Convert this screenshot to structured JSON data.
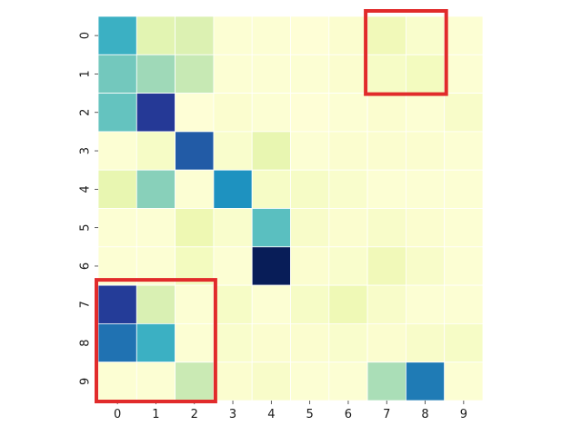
{
  "chart_data": {
    "type": "heatmap",
    "title": "",
    "xlabel": "",
    "ylabel": "",
    "colormap": "YlGnBu",
    "colorbar": false,
    "cell_border_color": "#ffffff",
    "x_tick_labels": [
      "0",
      "1",
      "2",
      "3",
      "4",
      "5",
      "6",
      "7",
      "8",
      "9"
    ],
    "y_tick_labels": [
      "0",
      "1",
      "2",
      "3",
      "4",
      "5",
      "6",
      "7",
      "8",
      "9"
    ],
    "vmin": 0,
    "vmax": 1,
    "values": [
      [
        0.52,
        0.16,
        0.18,
        0.02,
        0.02,
        0.01,
        0.03,
        0.1,
        0.04,
        0.02
      ],
      [
        0.4,
        0.32,
        0.25,
        0.02,
        0.02,
        0.02,
        0.03,
        0.06,
        0.08,
        0.02
      ],
      [
        0.43,
        0.86,
        0.01,
        0.03,
        0.02,
        0.01,
        0.02,
        0.03,
        0.02,
        0.05
      ],
      [
        0.02,
        0.06,
        0.76,
        0.04,
        0.14,
        0.02,
        0.03,
        0.03,
        0.03,
        0.02
      ],
      [
        0.14,
        0.36,
        0.02,
        0.62,
        0.06,
        0.06,
        0.04,
        0.02,
        0.02,
        0.02
      ],
      [
        0.02,
        0.02,
        0.12,
        0.04,
        0.45,
        0.05,
        0.03,
        0.05,
        0.03,
        0.02
      ],
      [
        0.02,
        0.02,
        0.08,
        0.02,
        1.0,
        0.03,
        0.04,
        0.1,
        0.05,
        0.02
      ],
      [
        0.85,
        0.19,
        0.02,
        0.06,
        0.02,
        0.06,
        0.11,
        0.05,
        0.02,
        0.02
      ],
      [
        0.7,
        0.52,
        0.02,
        0.04,
        0.03,
        0.03,
        0.04,
        0.03,
        0.05,
        0.06
      ],
      [
        0.02,
        0.02,
        0.24,
        0.03,
        0.05,
        0.02,
        0.02,
        0.3,
        0.68,
        0.02
      ]
    ],
    "highlight_boxes": [
      {
        "color": "#e12b2b",
        "row_start": 0,
        "row_end": 1,
        "col_start": 7,
        "col_end": 8
      },
      {
        "color": "#e12b2b",
        "row_start": 7,
        "row_end": 9,
        "col_start": 0,
        "col_end": 2
      }
    ]
  }
}
